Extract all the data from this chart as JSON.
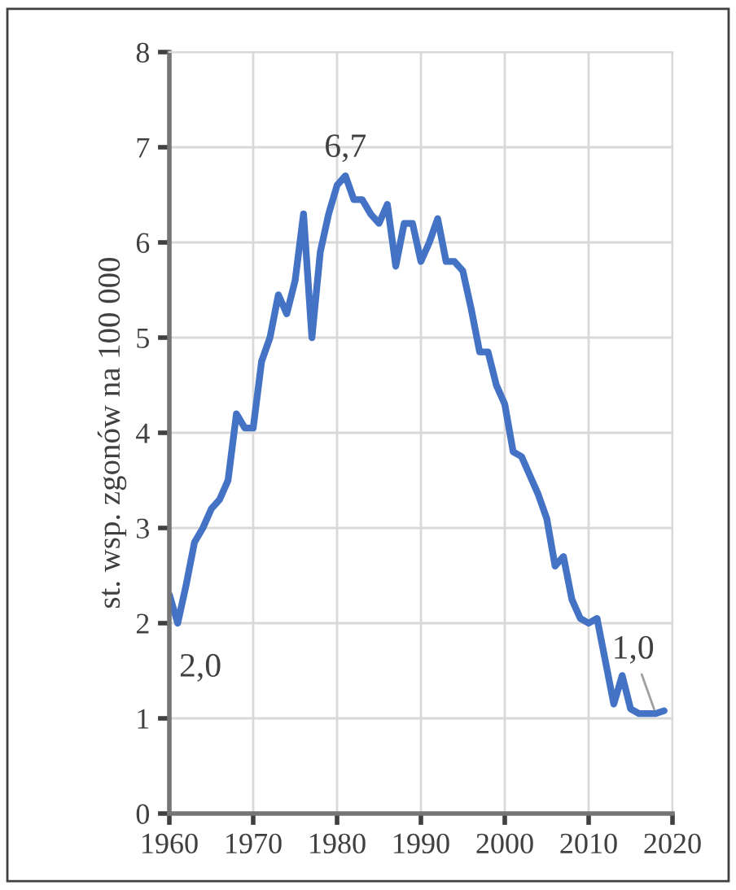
{
  "chart_data": {
    "type": "line",
    "ylabel": "st. wsp. zgonów na 100 000",
    "x": [
      1960,
      1961,
      1962,
      1963,
      1964,
      1965,
      1966,
      1967,
      1968,
      1969,
      1970,
      1971,
      1972,
      1973,
      1974,
      1975,
      1976,
      1977,
      1978,
      1979,
      1980,
      1981,
      1982,
      1983,
      1984,
      1985,
      1986,
      1987,
      1988,
      1989,
      1990,
      1991,
      1992,
      1993,
      1994,
      1995,
      1996,
      1997,
      1998,
      1999,
      2000,
      2001,
      2002,
      2003,
      2004,
      2005,
      2006,
      2007,
      2008,
      2009,
      2010,
      2011,
      2012,
      2013,
      2014,
      2015,
      2016,
      2017,
      2018,
      2019
    ],
    "series": [
      {
        "color": "#4472c4",
        "values": [
          2.3,
          2.0,
          2.4,
          2.85,
          3.0,
          3.2,
          3.3,
          3.5,
          4.2,
          4.05,
          4.05,
          4.75,
          5.0,
          5.45,
          5.25,
          5.6,
          6.3,
          5.0,
          5.9,
          6.3,
          6.6,
          6.7,
          6.45,
          6.45,
          6.3,
          6.2,
          6.4,
          5.75,
          6.2,
          6.2,
          5.8,
          6.0,
          6.25,
          5.8,
          5.8,
          5.7,
          5.3,
          4.85,
          4.85,
          4.5,
          4.3,
          3.8,
          3.75,
          3.55,
          3.35,
          3.1,
          2.6,
          2.7,
          2.25,
          2.05,
          2.0,
          2.05,
          1.6,
          1.15,
          1.45,
          1.1,
          1.05,
          1.05,
          1.05,
          1.08
        ]
      }
    ],
    "annotations": [
      {
        "text": "2,0",
        "x": 1961,
        "y": 2.0
      },
      {
        "text": "6,7",
        "x": 1981,
        "y": 6.7
      },
      {
        "text": "1,0",
        "x": 2018,
        "y": 1.05
      }
    ],
    "xlim": [
      1960,
      2020
    ],
    "xticks": [
      1960,
      1970,
      1980,
      1990,
      2000,
      2010,
      2020
    ],
    "ylim": [
      0,
      8
    ],
    "yticks": [
      0,
      1,
      2,
      3,
      4,
      5,
      6,
      7,
      8
    ],
    "grid": true,
    "marker": "none",
    "line_style": "solid"
  }
}
